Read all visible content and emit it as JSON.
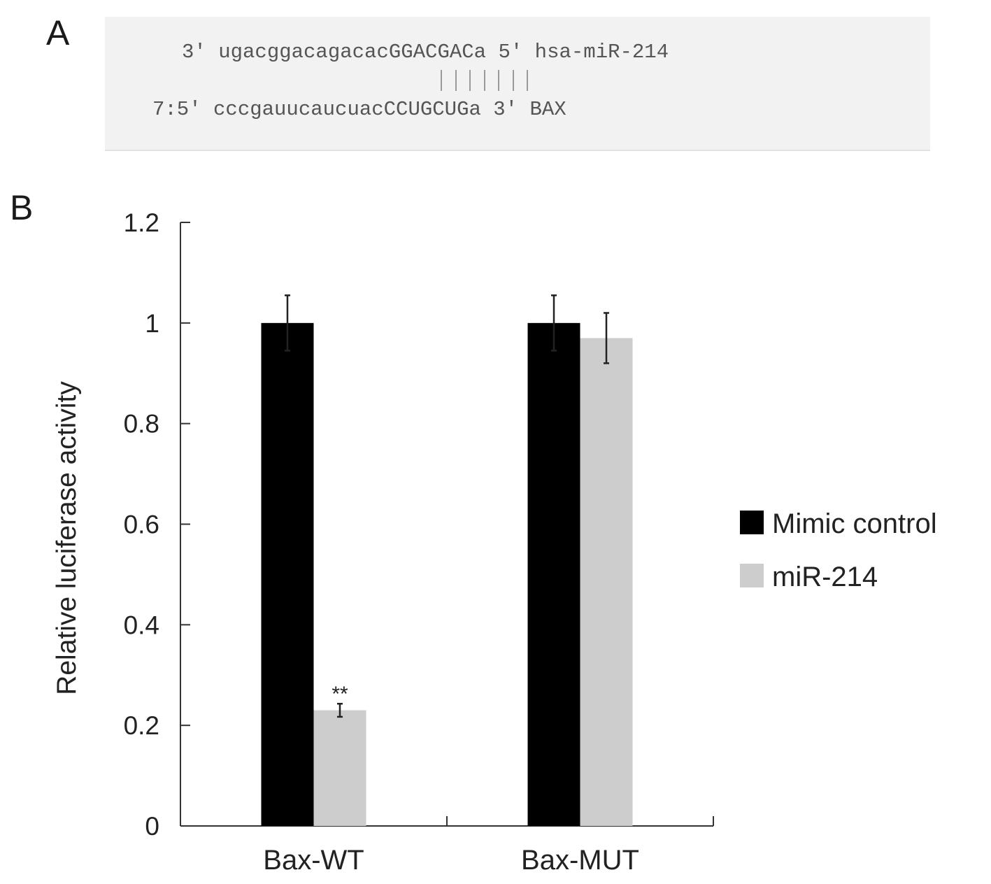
{
  "panel_a": {
    "label": "A",
    "line1": "3' ugacggacagacacGGACGACa 5' hsa-miR-214",
    "line2_pairs": 7,
    "line3": "7:5' cccgauucaucuacCCUGCUGa 3' BAX"
  },
  "panel_b": {
    "label": "B"
  },
  "chart_data": {
    "type": "bar",
    "ylabel": "Relative luciferase activity",
    "xlabel": "",
    "ylim": [
      0,
      1.2
    ],
    "yticks": [
      "0",
      "0.2",
      "0.4",
      "0.6",
      "0.8",
      "1",
      "1.2"
    ],
    "categories": [
      "Bax-WT",
      "Bax-MUT"
    ],
    "series": [
      {
        "name": "Mimic control",
        "color": "#000000",
        "values": [
          1.0,
          1.0
        ],
        "errors": [
          0.055,
          0.055
        ]
      },
      {
        "name": "miR-214",
        "color": "#cdcdcd",
        "values": [
          0.23,
          0.97
        ],
        "errors": [
          0.013,
          0.05
        ]
      }
    ],
    "annotations": [
      {
        "text": "**",
        "category": "Bax-WT",
        "series": "miR-214"
      }
    ],
    "legend_position": "right",
    "grid": false
  }
}
